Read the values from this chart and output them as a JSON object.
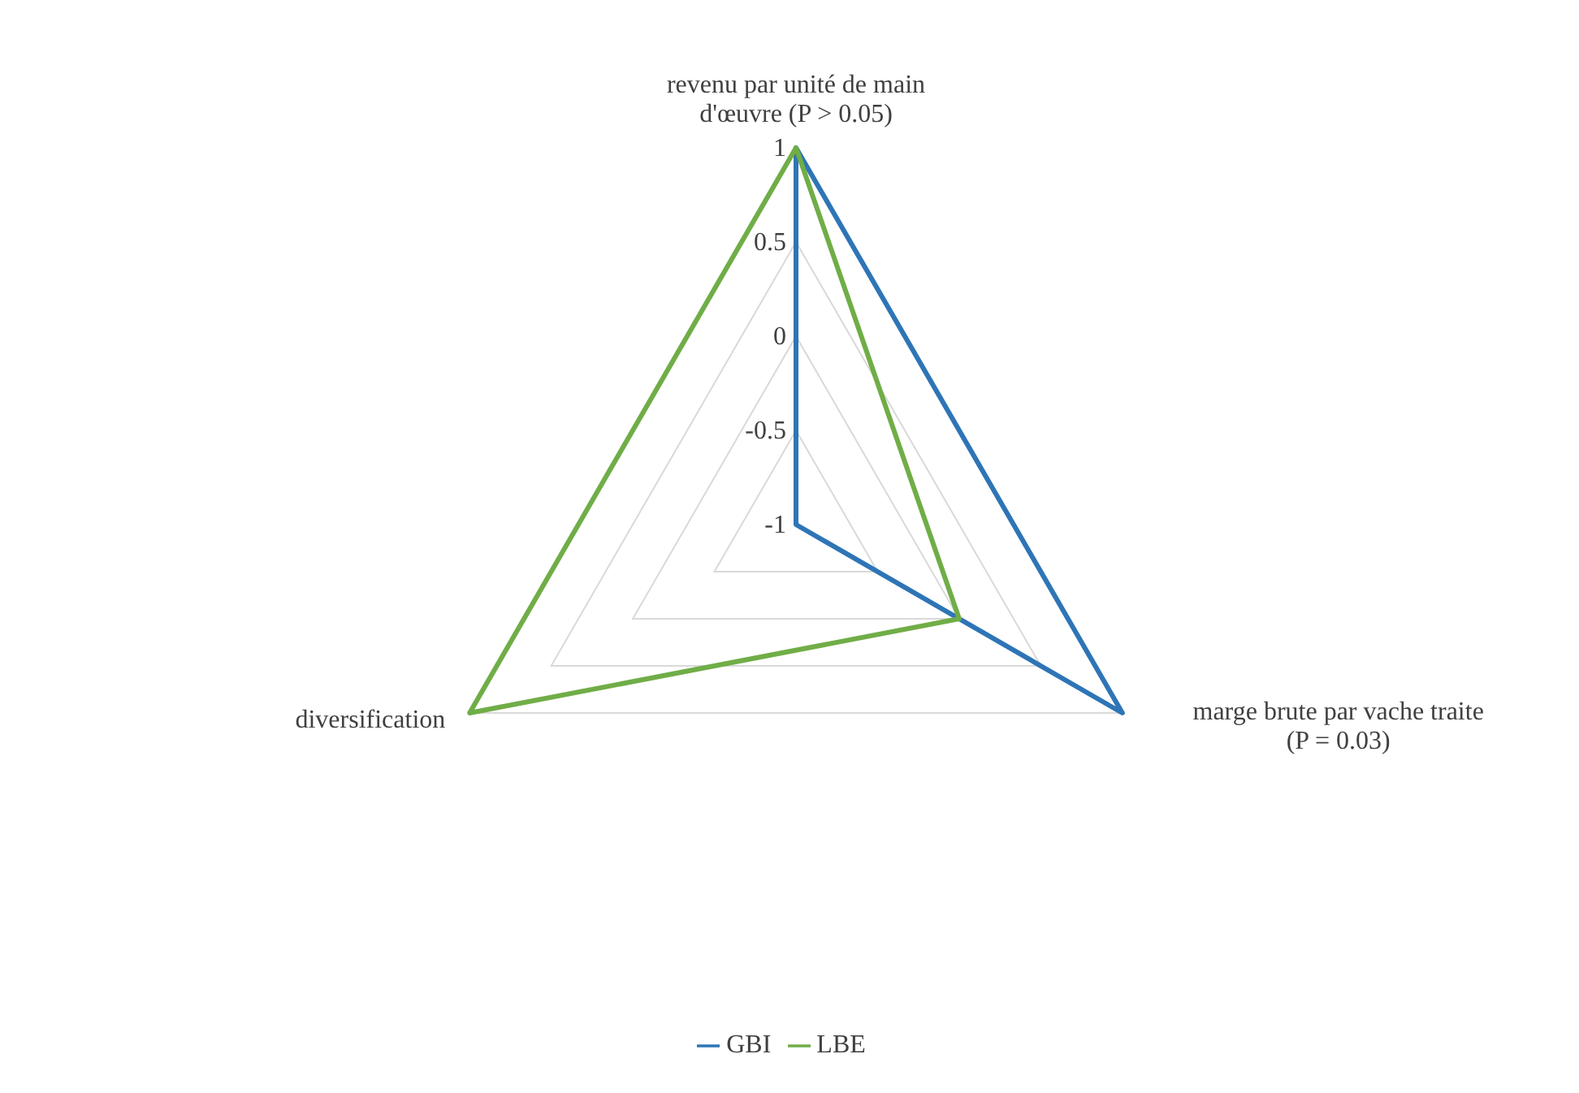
{
  "chart_data": {
    "type": "radar",
    "categories": [
      "revenu par unité de main d'œuvre (P > 0.05)",
      "marge brute par vache traite (P = 0.03)",
      "diversification"
    ],
    "series": [
      {
        "name": "GBI",
        "color": "#2e75b6",
        "values": [
          1,
          1,
          -1
        ]
      },
      {
        "name": "LBE",
        "color": "#70ad47",
        "values": [
          1,
          0,
          1
        ]
      }
    ],
    "ylim": [
      -1,
      1
    ],
    "yticks": [
      -1,
      -0.5,
      0,
      0.5,
      1
    ],
    "grid": true,
    "legend": "bottom",
    "marker": "none"
  }
}
